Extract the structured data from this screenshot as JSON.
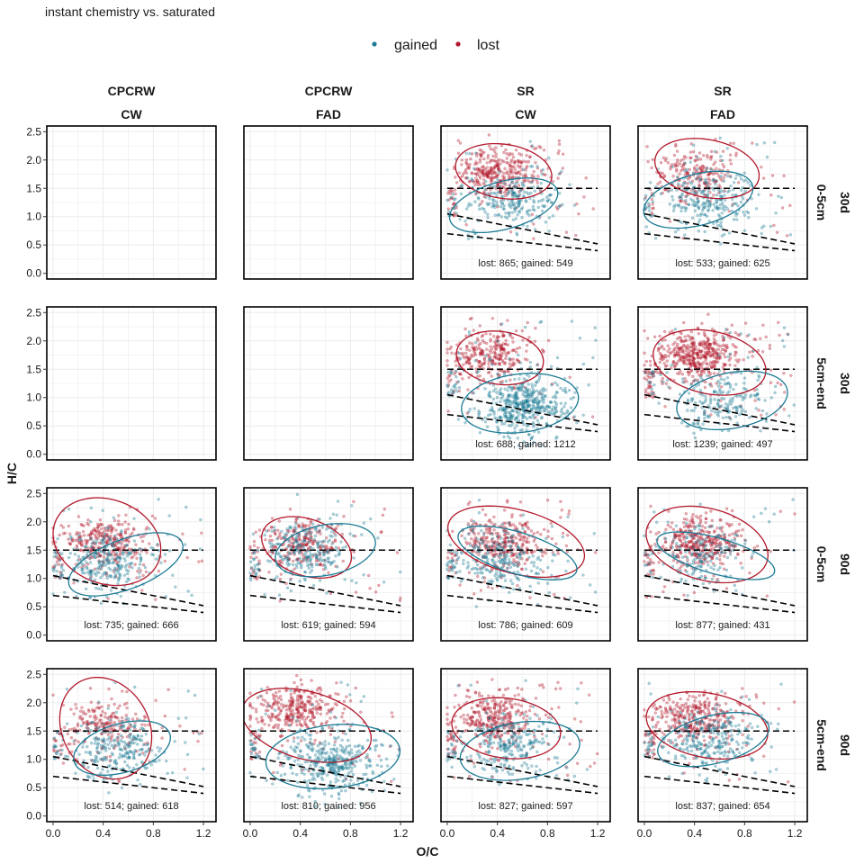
{
  "title": "instant chemistry vs. saturated",
  "legend": {
    "placement": "top-center",
    "entries": [
      {
        "key": "gained",
        "label": "gained",
        "color": "#1b7a94"
      },
      {
        "key": "lost",
        "label": "lost",
        "color": "#b2182b"
      }
    ]
  },
  "chart_data": {
    "type": "scatter",
    "facet_cols": [
      {
        "top": "CPCRW",
        "bottom": "CW"
      },
      {
        "top": "CPCRW",
        "bottom": "FAD"
      },
      {
        "top": "SR",
        "bottom": "CW"
      },
      {
        "top": "SR",
        "bottom": "FAD"
      }
    ],
    "facet_rows": [
      {
        "top": "30d",
        "bottom": "0-5cm"
      },
      {
        "top": "30d",
        "bottom": "5cm-end"
      },
      {
        "top": "90d",
        "bottom": "0-5cm"
      },
      {
        "top": "90d",
        "bottom": "5cm-end"
      }
    ],
    "xlabel": "O/C",
    "ylabel": "H/C",
    "xlim": [
      -0.05,
      1.3
    ],
    "ylim": [
      -0.1,
      2.6
    ],
    "xticks": [
      {
        "v": 0,
        "label": "0.0"
      },
      {
        "v": 0.4,
        "label": "0.4"
      },
      {
        "v": 0.8,
        "label": "0.8"
      },
      {
        "v": 1.2,
        "label": "1.2"
      }
    ],
    "yticks": [
      {
        "v": 0,
        "label": "0.0"
      },
      {
        "v": 0.5,
        "label": "0.5"
      },
      {
        "v": 1,
        "label": "1.0"
      },
      {
        "v": 1.5,
        "label": "1.5"
      },
      {
        "v": 2,
        "label": "2.0"
      },
      {
        "v": 2.5,
        "label": "2.5"
      }
    ],
    "grid": true,
    "reference_lines": [
      {
        "x1": 0,
        "y1": 1.5,
        "x2": 1.2,
        "y2": 1.5
      },
      {
        "x1": 0,
        "y1": 1.05,
        "x2": 1.2,
        "y2": 0.52
      },
      {
        "x1": 0,
        "y1": 0.7,
        "x2": 1.2,
        "y2": 0.4
      }
    ],
    "panels": [
      {
        "row": 0,
        "col": 0,
        "empty": true
      },
      {
        "row": 0,
        "col": 1,
        "empty": true
      },
      {
        "row": 0,
        "col": 2,
        "empty": false,
        "lost": 865,
        "gained": 549,
        "count_label": "lost: 865; gained: 549",
        "lost_center": [
          0.4,
          1.78
        ],
        "gained_center": [
          0.52,
          1.25
        ],
        "lost_ellipse": {
          "cx": 0.45,
          "cy": 1.8,
          "rx": 0.37,
          "ry": 0.5,
          "angle": 18
        },
        "gained_ellipse": {
          "cx": 0.45,
          "cy": 1.2,
          "rx": 0.34,
          "ry": 0.55,
          "angle": -38
        }
      },
      {
        "row": 0,
        "col": 3,
        "empty": false,
        "lost": 533,
        "gained": 625,
        "count_label": "lost: 533; gained: 625",
        "lost_center": [
          0.42,
          1.78
        ],
        "gained_center": [
          0.52,
          1.3
        ],
        "lost_ellipse": {
          "cx": 0.5,
          "cy": 1.85,
          "rx": 0.39,
          "ry": 0.55,
          "angle": 22
        },
        "gained_ellipse": {
          "cx": 0.43,
          "cy": 1.3,
          "rx": 0.36,
          "ry": 0.56,
          "angle": -35
        }
      },
      {
        "row": 1,
        "col": 0,
        "empty": true
      },
      {
        "row": 1,
        "col": 1,
        "empty": true
      },
      {
        "row": 1,
        "col": 2,
        "empty": false,
        "lost": 688,
        "gained": 1212,
        "count_label": "lost: 688; gained: 1212",
        "lost_center": [
          0.35,
          1.75
        ],
        "gained_center": [
          0.6,
          0.85
        ],
        "lost_ellipse": {
          "cx": 0.42,
          "cy": 1.7,
          "rx": 0.34,
          "ry": 0.48,
          "angle": 12
        },
        "gained_ellipse": {
          "cx": 0.58,
          "cy": 0.9,
          "rx": 0.44,
          "ry": 0.55,
          "angle": -28
        }
      },
      {
        "row": 1,
        "col": 3,
        "empty": false,
        "lost": 1239,
        "gained": 497,
        "count_label": "lost: 1239; gained: 497",
        "lost_center": [
          0.42,
          1.75
        ],
        "gained_center": [
          0.62,
          0.95
        ],
        "lost_ellipse": {
          "cx": 0.52,
          "cy": 1.62,
          "rx": 0.42,
          "ry": 0.6,
          "angle": 22
        },
        "gained_ellipse": {
          "cx": 0.7,
          "cy": 0.95,
          "rx": 0.4,
          "ry": 0.55,
          "angle": -30
        }
      },
      {
        "row": 2,
        "col": 0,
        "empty": false,
        "lost": 735,
        "gained": 666,
        "count_label": "lost: 735; gained: 666",
        "lost_center": [
          0.4,
          1.65
        ],
        "gained_center": [
          0.45,
          1.3
        ],
        "lost_ellipse": {
          "cx": 0.43,
          "cy": 1.65,
          "rx": 0.42,
          "ry": 0.78,
          "angle": 8
        },
        "gained_ellipse": {
          "cx": 0.58,
          "cy": 1.25,
          "rx": 0.33,
          "ry": 0.64,
          "angle": -35
        }
      },
      {
        "row": 2,
        "col": 1,
        "empty": false,
        "lost": 619,
        "gained": 594,
        "count_label": "lost: 619; gained: 594",
        "lost_center": [
          0.4,
          1.6
        ],
        "gained_center": [
          0.45,
          1.5
        ],
        "lost_ellipse": {
          "cx": 0.45,
          "cy": 1.55,
          "rx": 0.33,
          "ry": 0.56,
          "angle": 18
        },
        "gained_ellipse": {
          "cx": 0.6,
          "cy": 1.5,
          "rx": 0.36,
          "ry": 0.5,
          "angle": -30
        }
      },
      {
        "row": 2,
        "col": 2,
        "empty": false,
        "lost": 786,
        "gained": 609,
        "count_label": "lost: 786; gained: 609",
        "lost_center": [
          0.45,
          1.65
        ],
        "gained_center": [
          0.4,
          1.35
        ],
        "lost_ellipse": {
          "cx": 0.55,
          "cy": 1.65,
          "rx": 0.45,
          "ry": 0.7,
          "angle": 35
        },
        "gained_ellipse": {
          "cx": 0.56,
          "cy": 1.45,
          "rx": 0.3,
          "ry": 0.6,
          "angle": 45
        }
      },
      {
        "row": 2,
        "col": 3,
        "empty": false,
        "lost": 877,
        "gained": 431,
        "count_label": "lost: 877; gained: 431",
        "lost_center": [
          0.45,
          1.65
        ],
        "gained_center": [
          0.45,
          1.4
        ],
        "lost_ellipse": {
          "cx": 0.5,
          "cy": 1.6,
          "rx": 0.45,
          "ry": 0.7,
          "angle": 20
        },
        "gained_ellipse": {
          "cx": 0.57,
          "cy": 1.4,
          "rx": 0.27,
          "ry": 0.57,
          "angle": 50
        }
      },
      {
        "row": 3,
        "col": 0,
        "empty": false,
        "lost": 514,
        "gained": 618,
        "count_label": "lost: 514; gained: 618",
        "lost_center": [
          0.4,
          1.6
        ],
        "gained_center": [
          0.5,
          1.2
        ],
        "lost_ellipse": {
          "cx": 0.42,
          "cy": 1.55,
          "rx": 0.36,
          "ry": 0.9,
          "angle": 5
        },
        "gained_ellipse": {
          "cx": 0.55,
          "cy": 1.2,
          "rx": 0.33,
          "ry": 0.52,
          "angle": -30
        }
      },
      {
        "row": 3,
        "col": 1,
        "empty": false,
        "lost": 810,
        "gained": 956,
        "count_label": "lost: 810; gained: 956",
        "lost_center": [
          0.38,
          1.85
        ],
        "gained_center": [
          0.65,
          0.95
        ],
        "lost_ellipse": {
          "cx": 0.45,
          "cy": 1.6,
          "rx": 0.45,
          "ry": 0.7,
          "angle": 28
        },
        "gained_ellipse": {
          "cx": 0.66,
          "cy": 1.05,
          "rx": 0.5,
          "ry": 0.6,
          "angle": -35
        }
      },
      {
        "row": 3,
        "col": 2,
        "empty": false,
        "lost": 827,
        "gained": 597,
        "count_label": "lost: 827; gained: 597",
        "lost_center": [
          0.38,
          1.75
        ],
        "gained_center": [
          0.5,
          1.25
        ],
        "lost_ellipse": {
          "cx": 0.47,
          "cy": 1.55,
          "rx": 0.42,
          "ry": 0.55,
          "angle": 18
        },
        "gained_ellipse": {
          "cx": 0.58,
          "cy": 1.15,
          "rx": 0.43,
          "ry": 0.56,
          "angle": -35
        }
      },
      {
        "row": 3,
        "col": 3,
        "empty": false,
        "lost": 837,
        "gained": 654,
        "count_label": "lost: 837; gained: 654",
        "lost_center": [
          0.4,
          1.75
        ],
        "gained_center": [
          0.5,
          1.3
        ],
        "lost_ellipse": {
          "cx": 0.5,
          "cy": 1.6,
          "rx": 0.45,
          "ry": 0.62,
          "angle": 25
        },
        "gained_ellipse": {
          "cx": 0.55,
          "cy": 1.35,
          "rx": 0.35,
          "ry": 0.55,
          "angle": -40
        }
      }
    ]
  }
}
